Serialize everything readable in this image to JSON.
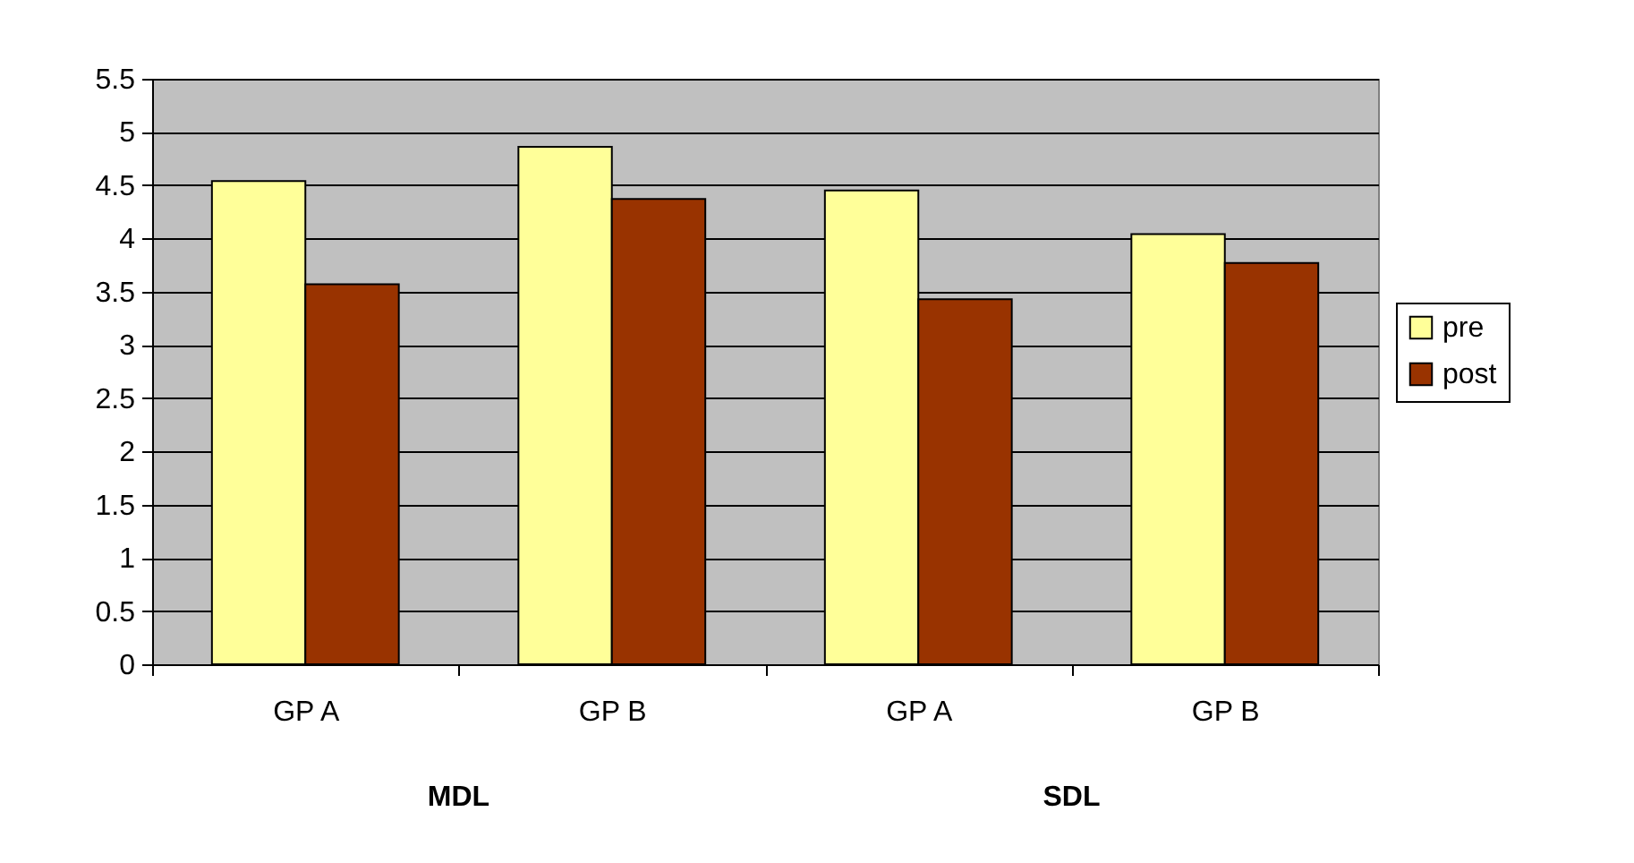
{
  "chart_data": {
    "type": "bar",
    "categories": [
      "GP A",
      "GP B",
      "GP A",
      "GP B"
    ],
    "annotations": [
      "MDL",
      "SDL"
    ],
    "series": [
      {
        "name": "pre",
        "color": "#ffff99",
        "values": [
          4.54,
          4.86,
          4.45,
          4.04
        ]
      },
      {
        "name": "post",
        "color": "#993300",
        "values": [
          3.57,
          4.37,
          3.43,
          3.77
        ]
      }
    ],
    "ylim": [
      0,
      5.5
    ],
    "yticks": [
      0,
      0.5,
      1,
      1.5,
      2,
      2.5,
      3,
      3.5,
      4,
      4.5,
      5,
      5.5
    ],
    "grid": "y",
    "legend": "right"
  }
}
